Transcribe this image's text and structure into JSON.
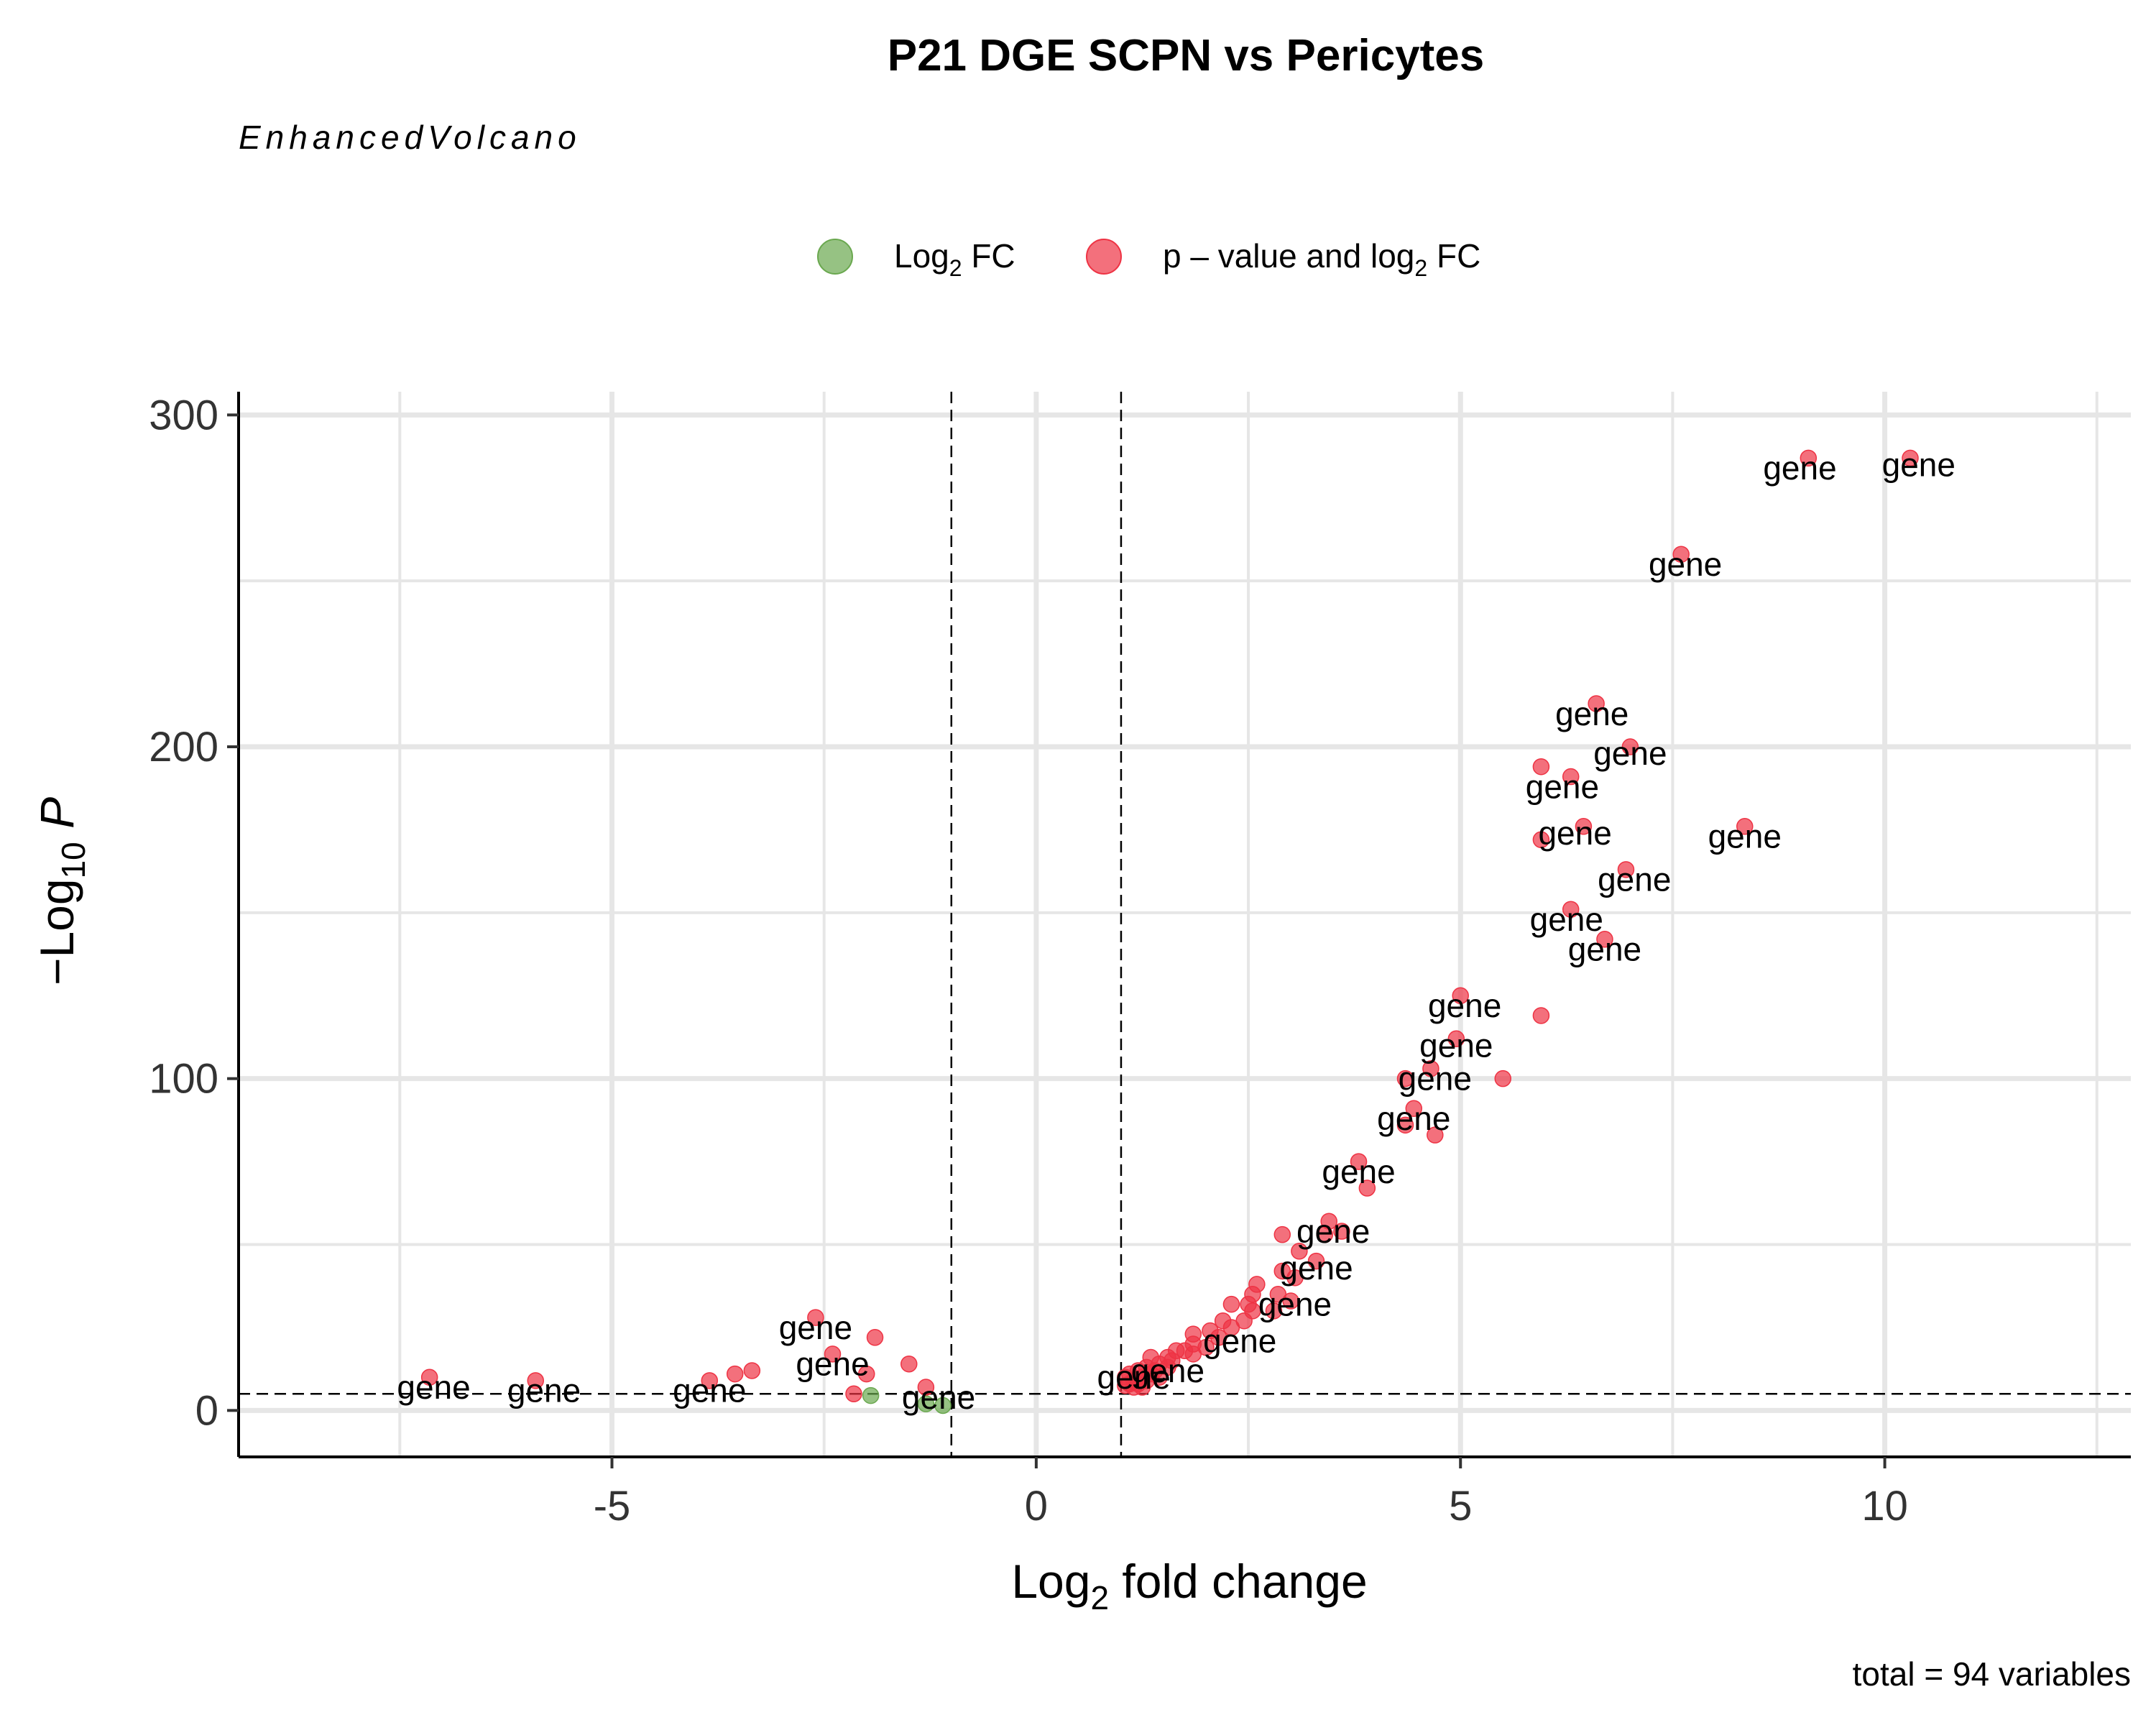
{
  "chart_data": {
    "type": "scatter",
    "title": "P21 DGE SCPN vs Pericytes",
    "subtitle": "EnhancedVolcano",
    "caption": "total = 94 variables",
    "xlabel": {
      "main": "Log",
      "sub": "2",
      "rest": " fold change"
    },
    "ylabel": {
      "main": "−Log",
      "sub": "10",
      "italic": " P"
    },
    "xlim": [
      -9.4,
      12.9
    ],
    "ylim": [
      -14,
      307
    ],
    "x_ticks": [
      -5,
      0,
      5,
      10
    ],
    "x_tick_labels": [
      "-5",
      "0",
      "5",
      "10"
    ],
    "y_ticks": [
      0,
      100,
      200,
      300
    ],
    "y_tick_labels": [
      "0",
      "100",
      "200",
      "300"
    ],
    "fc_cutoff": 1,
    "p_cutoff": 5,
    "grid": true,
    "legend_position": "top",
    "legend": [
      {
        "key": "log2fc",
        "main": "Log",
        "sub": "2",
        "rest": " FC",
        "color": "#6aa84f"
      },
      {
        "key": "pfc",
        "main": "p – value and log",
        "sub": "2",
        "rest": " FC",
        "color": "#ee3344"
      }
    ],
    "colors": {
      "log2fc": "#6aa84f",
      "pfc": "#ee3344",
      "grid": "#e6e6e6"
    },
    "series": [
      {
        "key": "log2fc",
        "points": [
          [
            -1.95,
            4.5
          ],
          [
            -1.3,
            2
          ],
          [
            -1.1,
            1.5
          ]
        ]
      },
      {
        "key": "pfc",
        "points": [
          [
            10.3,
            287
          ],
          [
            9.1,
            287
          ],
          [
            7.6,
            258
          ],
          [
            6.6,
            213
          ],
          [
            7.0,
            200
          ],
          [
            5.95,
            194
          ],
          [
            6.3,
            191
          ],
          [
            8.35,
            176
          ],
          [
            6.45,
            176
          ],
          [
            5.95,
            172
          ],
          [
            6.95,
            163
          ],
          [
            6.3,
            151
          ],
          [
            6.7,
            142
          ],
          [
            5.0,
            125
          ],
          [
            5.95,
            119
          ],
          [
            4.95,
            112
          ],
          [
            4.65,
            103
          ],
          [
            5.5,
            100
          ],
          [
            4.35,
            100
          ],
          [
            4.45,
            91
          ],
          [
            4.35,
            86
          ],
          [
            4.7,
            83
          ],
          [
            3.8,
            75
          ],
          [
            3.9,
            67
          ],
          [
            3.45,
            57
          ],
          [
            3.6,
            54
          ],
          [
            2.9,
            53
          ],
          [
            3.4,
            53
          ],
          [
            3.1,
            48
          ],
          [
            3.3,
            45
          ],
          [
            2.9,
            42
          ],
          [
            3.05,
            40
          ],
          [
            2.6,
            38
          ],
          [
            2.55,
            35
          ],
          [
            2.85,
            35
          ],
          [
            3.0,
            33
          ],
          [
            2.3,
            32
          ],
          [
            2.5,
            32
          ],
          [
            2.55,
            30
          ],
          [
            2.8,
            30
          ],
          [
            2.45,
            27
          ],
          [
            2.2,
            27
          ],
          [
            2.3,
            25
          ],
          [
            2.05,
            24
          ],
          [
            1.85,
            23
          ],
          [
            2.15,
            22
          ],
          [
            1.85,
            20
          ],
          [
            2.0,
            19
          ],
          [
            1.75,
            18
          ],
          [
            1.65,
            18
          ],
          [
            1.85,
            17
          ],
          [
            1.55,
            16
          ],
          [
            1.35,
            16
          ],
          [
            1.6,
            15
          ],
          [
            1.45,
            14
          ],
          [
            1.55,
            13
          ],
          [
            1.3,
            13
          ],
          [
            1.4,
            12
          ],
          [
            1.2,
            12
          ],
          [
            1.35,
            11
          ],
          [
            1.1,
            11
          ],
          [
            1.25,
            10
          ],
          [
            1.05,
            10
          ],
          [
            1.45,
            10
          ],
          [
            1.15,
            9
          ],
          [
            1.3,
            9
          ],
          [
            1.1,
            8
          ],
          [
            1.2,
            8
          ],
          [
            1.05,
            7.5
          ],
          [
            1.25,
            7
          ],
          [
            1.15,
            7
          ],
          [
            -2.6,
            28
          ],
          [
            -1.9,
            22
          ],
          [
            -2.4,
            17
          ],
          [
            -1.5,
            14
          ],
          [
            -3.35,
            12
          ],
          [
            -3.55,
            11
          ],
          [
            -2.0,
            11
          ],
          [
            -3.85,
            9
          ],
          [
            -7.15,
            10
          ],
          [
            -5.9,
            9
          ],
          [
            -1.3,
            7
          ],
          [
            -2.15,
            5
          ]
        ]
      }
    ],
    "labels": [
      {
        "text": "gene",
        "x": 9.0,
        "y": 284
      },
      {
        "text": "gene",
        "x": 10.4,
        "y": 285
      },
      {
        "text": "gene",
        "x": 7.65,
        "y": 255
      },
      {
        "text": "gene",
        "x": 6.55,
        "y": 210
      },
      {
        "text": "gene",
        "x": 7.0,
        "y": 198
      },
      {
        "text": "gene",
        "x": 6.2,
        "y": 188
      },
      {
        "text": "gene",
        "x": 8.35,
        "y": 173
      },
      {
        "text": "gene",
        "x": 6.35,
        "y": 174
      },
      {
        "text": "gene",
        "x": 7.05,
        "y": 160
      },
      {
        "text": "gene",
        "x": 6.25,
        "y": 148
      },
      {
        "text": "gene",
        "x": 6.7,
        "y": 139
      },
      {
        "text": "gene",
        "x": 5.05,
        "y": 122
      },
      {
        "text": "gene",
        "x": 4.95,
        "y": 110
      },
      {
        "text": "gene",
        "x": 4.7,
        "y": 100
      },
      {
        "text": "gene",
        "x": 4.45,
        "y": 88
      },
      {
        "text": "gene",
        "x": 3.8,
        "y": 72
      },
      {
        "text": "gene",
        "x": 3.5,
        "y": 54
      },
      {
        "text": "gene",
        "x": 3.3,
        "y": 43
      },
      {
        "text": "gene",
        "x": 3.05,
        "y": 32
      },
      {
        "text": "gene",
        "x": 2.4,
        "y": 21
      },
      {
        "text": "gene",
        "x": 1.55,
        "y": 12
      },
      {
        "text": "gene",
        "x": 1.15,
        "y": 10
      },
      {
        "text": "gene",
        "x": -2.6,
        "y": 25
      },
      {
        "text": "gene",
        "x": -2.4,
        "y": 14
      },
      {
        "text": "gene",
        "x": -1.15,
        "y": 4
      },
      {
        "text": "gene",
        "x": -3.85,
        "y": 6
      },
      {
        "text": "gene",
        "x": -7.1,
        "y": 7
      },
      {
        "text": "gene",
        "x": -5.8,
        "y": 6
      }
    ]
  }
}
